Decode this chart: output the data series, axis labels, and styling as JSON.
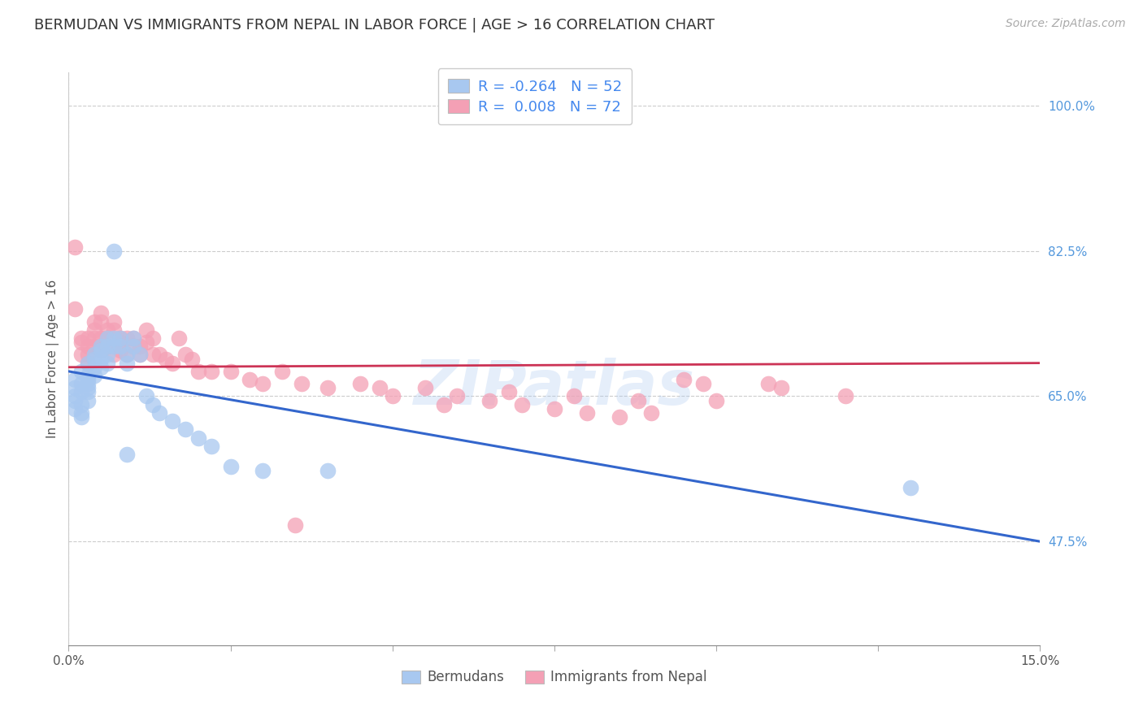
{
  "title": "BERMUDAN VS IMMIGRANTS FROM NEPAL IN LABOR FORCE | AGE > 16 CORRELATION CHART",
  "source": "Source: ZipAtlas.com",
  "ylabel": "In Labor Force | Age > 16",
  "xlim": [
    0.0,
    0.15
  ],
  "ylim": [
    0.35,
    1.04
  ],
  "ytick_right_vals": [
    1.0,
    0.825,
    0.65,
    0.475
  ],
  "ytick_right_labels": [
    "100.0%",
    "82.5%",
    "65.0%",
    "47.5%"
  ],
  "blue_color": "#a8c8f0",
  "blue_line_color": "#3366cc",
  "pink_color": "#f4a0b5",
  "pink_line_color": "#cc3355",
  "legend_r_blue": "R = -0.264",
  "legend_n_blue": "N = 52",
  "legend_r_pink": "R =  0.008",
  "legend_n_pink": "N = 72",
  "legend_label_blue": "Bermudans",
  "legend_label_pink": "Immigrants from Nepal",
  "title_fontsize": 13,
  "source_fontsize": 10,
  "ylabel_fontsize": 11,
  "tick_fontsize": 11,
  "watermark": "ZIPatlas",
  "blue_line_x0": 0.0,
  "blue_line_y0": 0.68,
  "blue_line_x1": 0.15,
  "blue_line_y1": 0.475,
  "pink_line_x0": 0.0,
  "pink_line_y0": 0.685,
  "pink_line_x1": 0.15,
  "pink_line_y1": 0.69,
  "blue_scatter_x": [
    0.001,
    0.001,
    0.001,
    0.001,
    0.001,
    0.002,
    0.002,
    0.002,
    0.002,
    0.002,
    0.002,
    0.003,
    0.003,
    0.003,
    0.003,
    0.003,
    0.003,
    0.003,
    0.004,
    0.004,
    0.004,
    0.004,
    0.005,
    0.005,
    0.005,
    0.005,
    0.006,
    0.006,
    0.006,
    0.006,
    0.007,
    0.007,
    0.007,
    0.008,
    0.008,
    0.009,
    0.009,
    0.01,
    0.01,
    0.011,
    0.012,
    0.013,
    0.014,
    0.016,
    0.018,
    0.02,
    0.022,
    0.025,
    0.03,
    0.04,
    0.13,
    0.009
  ],
  "blue_scatter_y": [
    0.67,
    0.66,
    0.65,
    0.645,
    0.635,
    0.68,
    0.665,
    0.655,
    0.64,
    0.63,
    0.625,
    0.69,
    0.675,
    0.67,
    0.665,
    0.66,
    0.655,
    0.645,
    0.7,
    0.695,
    0.685,
    0.675,
    0.71,
    0.705,
    0.695,
    0.685,
    0.72,
    0.71,
    0.7,
    0.69,
    0.825,
    0.72,
    0.71,
    0.72,
    0.71,
    0.7,
    0.69,
    0.72,
    0.71,
    0.7,
    0.65,
    0.64,
    0.63,
    0.62,
    0.61,
    0.6,
    0.59,
    0.565,
    0.56,
    0.56,
    0.54,
    0.58
  ],
  "pink_scatter_x": [
    0.001,
    0.001,
    0.002,
    0.002,
    0.002,
    0.003,
    0.003,
    0.003,
    0.003,
    0.004,
    0.004,
    0.004,
    0.004,
    0.005,
    0.005,
    0.005,
    0.005,
    0.006,
    0.006,
    0.006,
    0.007,
    0.007,
    0.007,
    0.008,
    0.008,
    0.008,
    0.009,
    0.009,
    0.01,
    0.01,
    0.011,
    0.011,
    0.012,
    0.012,
    0.013,
    0.013,
    0.014,
    0.015,
    0.016,
    0.017,
    0.018,
    0.019,
    0.02,
    0.022,
    0.025,
    0.028,
    0.03,
    0.033,
    0.036,
    0.04,
    0.045,
    0.05,
    0.055,
    0.06,
    0.065,
    0.07,
    0.075,
    0.08,
    0.085,
    0.09,
    0.095,
    0.1,
    0.11,
    0.12,
    0.035,
    0.048,
    0.058,
    0.068,
    0.078,
    0.088,
    0.098,
    0.108
  ],
  "pink_scatter_y": [
    0.83,
    0.755,
    0.72,
    0.715,
    0.7,
    0.72,
    0.71,
    0.7,
    0.69,
    0.74,
    0.73,
    0.72,
    0.71,
    0.75,
    0.74,
    0.72,
    0.705,
    0.73,
    0.72,
    0.71,
    0.74,
    0.73,
    0.7,
    0.72,
    0.715,
    0.705,
    0.72,
    0.7,
    0.72,
    0.71,
    0.71,
    0.7,
    0.73,
    0.715,
    0.72,
    0.7,
    0.7,
    0.695,
    0.69,
    0.72,
    0.7,
    0.695,
    0.68,
    0.68,
    0.68,
    0.67,
    0.665,
    0.68,
    0.665,
    0.66,
    0.665,
    0.65,
    0.66,
    0.65,
    0.645,
    0.64,
    0.635,
    0.63,
    0.625,
    0.63,
    0.67,
    0.645,
    0.66,
    0.65,
    0.495,
    0.66,
    0.64,
    0.655,
    0.65,
    0.645,
    0.665,
    0.665
  ],
  "background_color": "#ffffff",
  "grid_color": "#cccccc"
}
